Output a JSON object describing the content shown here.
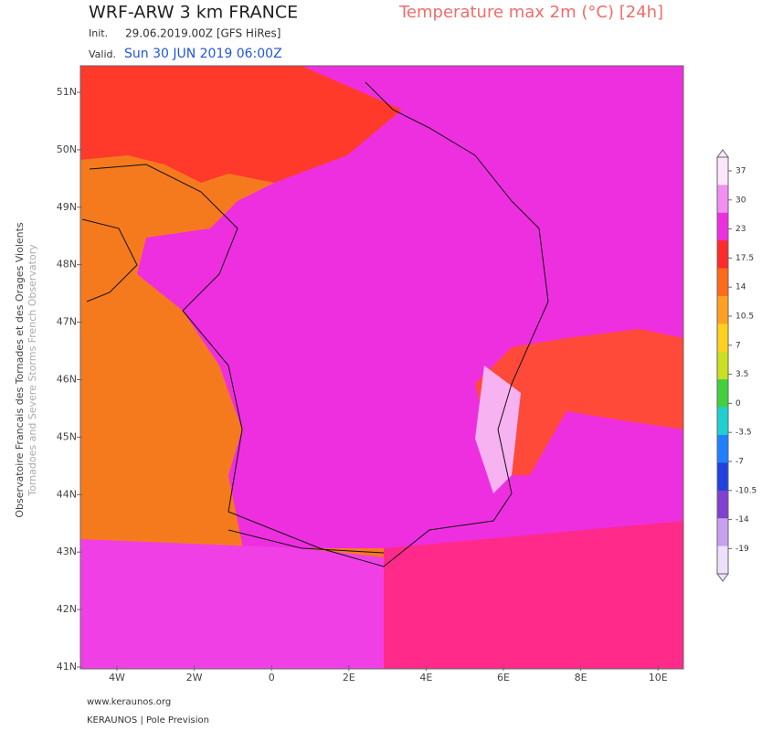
{
  "header": {
    "model_title": "WRF-ARW 3 km FRANCE",
    "product_title": "Temperature max 2m (°C) [24h]",
    "init_label": "Init.",
    "init_value": "29.06.2019.00Z [GFS HiRes]",
    "valid_label": "Valid.",
    "valid_value": "Sun 30 JUN 2019 06:00Z"
  },
  "map": {
    "lat_labels": [
      "51N",
      "50N",
      "49N",
      "48N",
      "47N",
      "46N",
      "45N",
      "44N",
      "43N",
      "42N",
      "41N"
    ],
    "lon_labels": [
      "4W",
      "2W",
      "0",
      "2E",
      "4E",
      "6E",
      "8E",
      "10E"
    ]
  },
  "colorbar": {
    "ticks": [
      37,
      30,
      23,
      17.5,
      14,
      10.5,
      7,
      3.5,
      0,
      -3.5,
      -7,
      -10.5,
      -14,
      -19
    ]
  },
  "side_text": {
    "line1": "Observatoire Francais des Tornades et des Orages Violents",
    "line2": "Tornadoes and Severe Storms French Observatory"
  },
  "footer": {
    "website": "www.keraunos.org",
    "company": "KERAUNOS | Pole Prevision"
  }
}
